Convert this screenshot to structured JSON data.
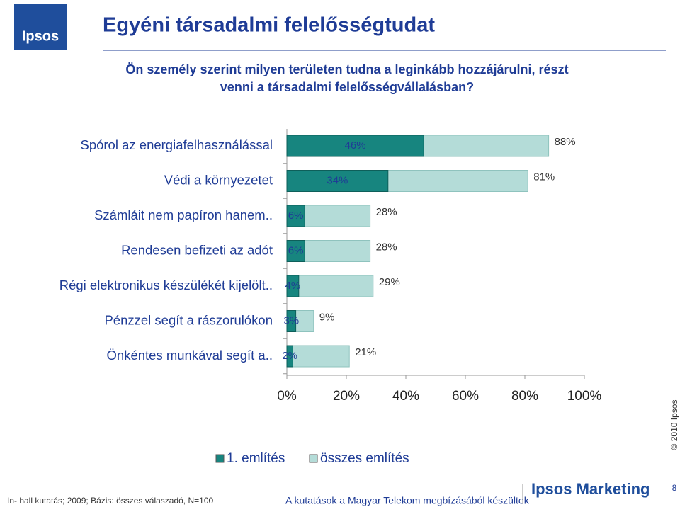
{
  "logo": "Ipsos",
  "header": {
    "title": "Egyéni társadalmi felelősségtudat",
    "question": [
      "Ön személy szerint milyen területen tudna a leginkább hozzájárulni, részt",
      "venni a társadalmi felelősségvállalásban?"
    ]
  },
  "chart_data": {
    "type": "hbar-overlap",
    "categories": [
      "Spórol az energiafelhasználással",
      "Védi a környezetet",
      "Számláit nem papíron hanem..",
      "Rendesen befizeti az adót",
      "Régi elektronikus készülékét kijelölt..",
      "Pénzzel segít a rászorulókon",
      "Önkéntes munkával segít a.."
    ],
    "series": [
      {
        "name": "1. említés",
        "color": "#17857f",
        "values": [
          46,
          34,
          6,
          6,
          4,
          3,
          2
        ],
        "value_labels": [
          "46%",
          "34%",
          "6%",
          "6%",
          "4%",
          "3%",
          "2%"
        ]
      },
      {
        "name": "összes említés",
        "color": "#b4dcd8",
        "values": [
          88,
          81,
          28,
          28,
          29,
          9,
          21
        ],
        "value_labels": [
          "88%",
          "81%",
          "28%",
          "28%",
          "29%",
          "9%",
          "21%"
        ]
      }
    ],
    "xlim": [
      0,
      100
    ],
    "xticks": [
      {
        "value": 0,
        "label": "0%"
      },
      {
        "value": 20,
        "label": "20%"
      },
      {
        "value": 40,
        "label": "40%"
      },
      {
        "value": 60,
        "label": "60%"
      },
      {
        "value": 80,
        "label": "80%"
      },
      {
        "value": 100,
        "label": "100%"
      }
    ],
    "legend": "bottom"
  },
  "footer": {
    "source": "In- hall kutatás; 2009; Bázis: összes válaszadó, N=100",
    "note": "A kutatások a Magyar Telekom megbízásából készültek",
    "brand": "Ipsos Marketing",
    "page": "8",
    "copyright": "© 2010 Ipsos"
  }
}
